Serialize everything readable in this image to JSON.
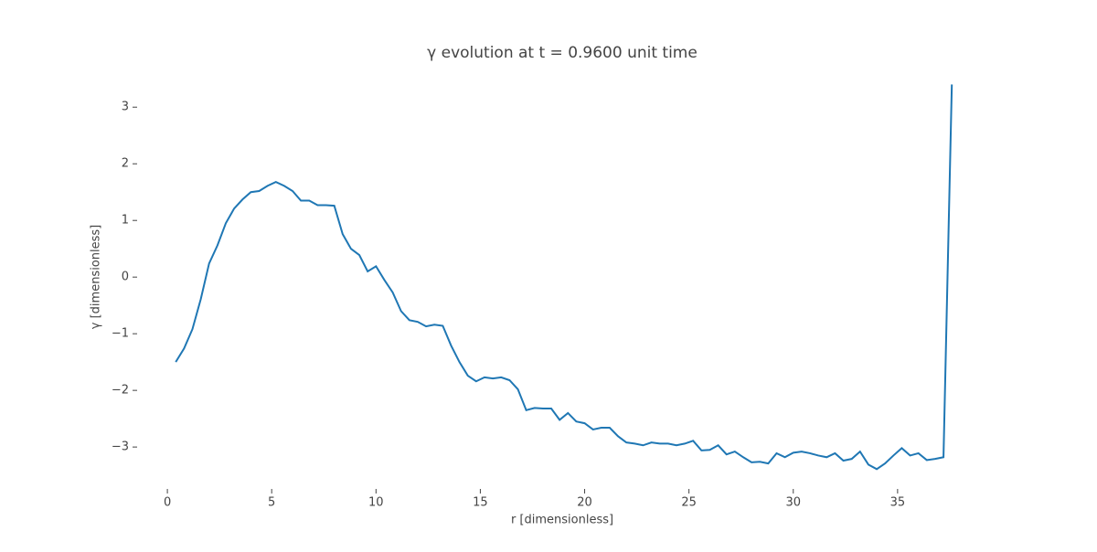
{
  "chart_data": {
    "type": "line",
    "title": "γ evolution at t = 0.9600 unit time",
    "xlabel": "r [dimensionless]",
    "ylabel": "γ [dimensionless]",
    "x": [
      0.4,
      0.8,
      1.2,
      1.6,
      2,
      2.4,
      2.8,
      3.2,
      3.6,
      4,
      4.4,
      4.8,
      5.2,
      5.6,
      6,
      6.4,
      6.8,
      7.2,
      7.6,
      8,
      8.4,
      8.8,
      9.2,
      9.6,
      10,
      10.4,
      10.8,
      11.2,
      11.6,
      12,
      12.4,
      12.8,
      13.2,
      13.6,
      14,
      14.4,
      14.8,
      15.2,
      15.6,
      16,
      16.4,
      16.8,
      17.2,
      17.6,
      18,
      18.4,
      18.8,
      19.2,
      19.6,
      20,
      20.4,
      20.8,
      21.2,
      21.6,
      22,
      22.4,
      22.8,
      23.2,
      23.6,
      24,
      24.4,
      24.8,
      25.2,
      25.6,
      26,
      26.4,
      26.8,
      27.2,
      27.6,
      28,
      28.4,
      28.8,
      29.2,
      29.6,
      30,
      30.4,
      30.8,
      31.2,
      31.6,
      32,
      32.4,
      32.8,
      33.2,
      33.6,
      34,
      34.4,
      34.8,
      35.2,
      35.6,
      36,
      36.4,
      36.8,
      37.2,
      37.6
    ],
    "series": [
      {
        "name": "γ",
        "color": "#1f77b4",
        "values": [
          -1.5,
          -1.26,
          -0.92,
          -0.39,
          0.24,
          0.56,
          0.95,
          1.21,
          1.37,
          1.5,
          1.52,
          1.61,
          1.68,
          1.61,
          1.52,
          1.35,
          1.35,
          1.27,
          1.27,
          1.26,
          0.76,
          0.5,
          0.39,
          0.1,
          0.19,
          -0.05,
          -0.27,
          -0.6,
          -0.76,
          -0.79,
          -0.87,
          -0.84,
          -0.86,
          -1.21,
          -1.5,
          -1.74,
          -1.84,
          -1.77,
          -1.79,
          -1.77,
          -1.82,
          -1.98,
          -2.35,
          -2.31,
          -2.32,
          -2.32,
          -2.52,
          -2.4,
          -2.55,
          -2.58,
          -2.69,
          -2.66,
          -2.66,
          -2.81,
          -2.92,
          -2.94,
          -2.97,
          -2.92,
          -2.94,
          -2.94,
          -2.97,
          -2.94,
          -2.89,
          -3.06,
          -3.05,
          -2.97,
          -3.13,
          -3.08,
          -3.18,
          -3.27,
          -3.26,
          -3.29,
          -3.11,
          -3.18,
          -3.1,
          -3.08,
          -3.11,
          -3.15,
          -3.18,
          -3.11,
          -3.24,
          -3.21,
          -3.08,
          -3.31,
          -3.39,
          -3.29,
          -3.15,
          -3.02,
          -3.15,
          -3.11,
          -3.23,
          -3.21,
          -3.18,
          3.4
        ]
      }
    ],
    "xlim": [
      -1.45,
      39.3
    ],
    "ylim": [
      -3.74,
      3.73
    ],
    "xticks": [
      0,
      5,
      10,
      15,
      20,
      25,
      30,
      35
    ],
    "yticks": [
      {
        "value": -3,
        "label": "−3"
      },
      {
        "value": -2,
        "label": "−2"
      },
      {
        "value": -1,
        "label": "−1"
      },
      0,
      1,
      2,
      3
    ]
  }
}
